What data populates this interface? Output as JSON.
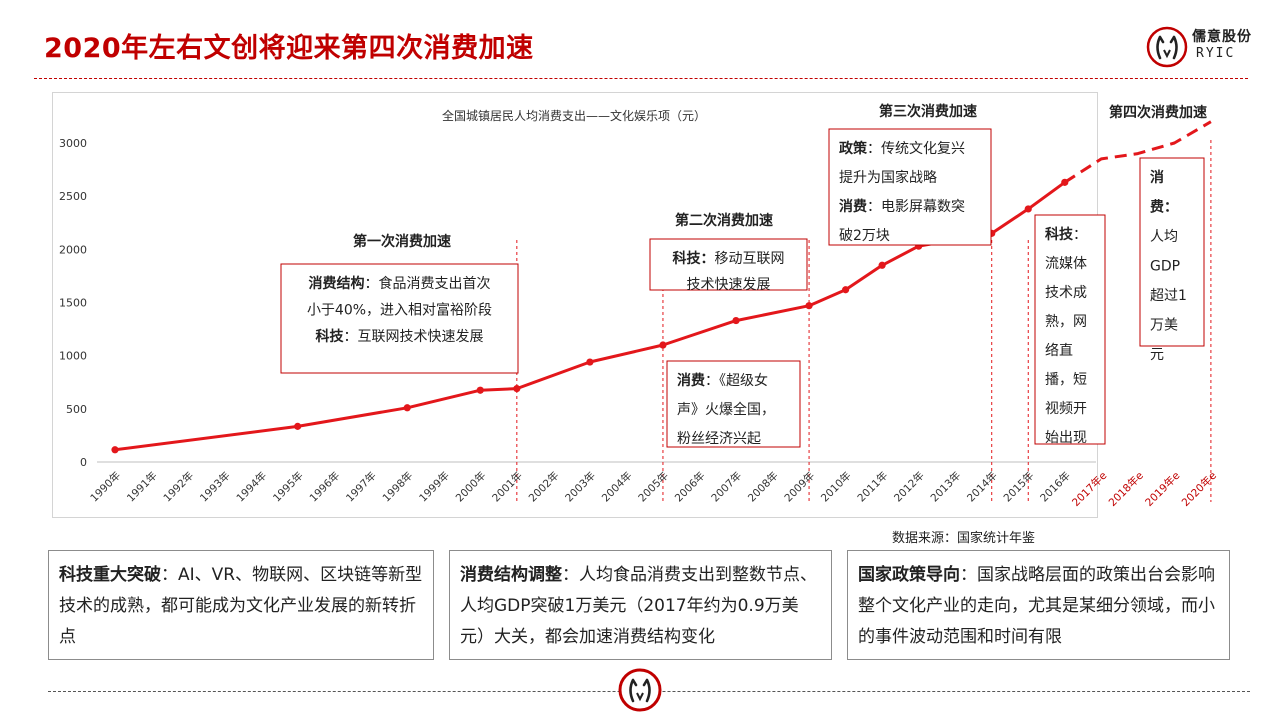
{
  "page": {
    "title": "2020年左右文创将迎来第四次消费加速",
    "source": "数据来源：国家统计年鉴"
  },
  "logo": {
    "icon": "ryic-logo-icon",
    "name_cn": "儒意股份",
    "name_en": "RYIC",
    "color": "#c00000"
  },
  "colors": {
    "accent": "#c00000",
    "line": "#e3171b"
  },
  "chart_data": {
    "type": "line",
    "title": "全国城镇居民人均消费支出——文化娱乐项（元）",
    "categories": [
      "1990年",
      "1991年",
      "1992年",
      "1993年",
      "1994年",
      "1995年",
      "1996年",
      "1997年",
      "1998年",
      "1999年",
      "2000年",
      "2001年",
      "2002年",
      "2003年",
      "2004年",
      "2005年",
      "2006年",
      "2007年",
      "2008年",
      "2009年",
      "2010年",
      "2011年",
      "2012年",
      "2013年",
      "2014年",
      "2015年",
      "2016年",
      "2017年e",
      "2018年e",
      "2019年e",
      "2020年e"
    ],
    "forecast_categories": [
      "2017年e",
      "2018年e",
      "2019年e",
      "2020年e"
    ],
    "y_ticks": [
      0,
      500,
      1000,
      1500,
      2000,
      2500,
      3000
    ],
    "ylim": [
      0,
      3000
    ],
    "grid": false,
    "series": [
      {
        "points": [
          {
            "x": "1990年",
            "y": 115
          },
          {
            "x": "1995年",
            "y": 335
          },
          {
            "x": "1998年",
            "y": 510
          },
          {
            "x": "2000年",
            "y": 675
          },
          {
            "x": "2001年",
            "y": 690
          },
          {
            "x": "2003年",
            "y": 940
          },
          {
            "x": "2005年",
            "y": 1100
          },
          {
            "x": "2007年",
            "y": 1330
          },
          {
            "x": "2009年",
            "y": 1470
          },
          {
            "x": "2010年",
            "y": 1620
          },
          {
            "x": "2011年",
            "y": 1850
          },
          {
            "x": "2012年",
            "y": 2030
          },
          {
            "x": "2014年",
            "y": 2150
          },
          {
            "x": "2015年",
            "y": 2380
          },
          {
            "x": "2016年",
            "y": 2630
          }
        ]
      },
      {
        "forecast": true,
        "points": [
          {
            "x": "2016年",
            "y": 2630
          },
          {
            "x": "2017年e",
            "y": 2850
          },
          {
            "x": "2018年e",
            "y": 2900
          },
          {
            "x": "2019年e",
            "y": 3000
          },
          {
            "x": "2020年e",
            "y": 3200
          }
        ]
      }
    ],
    "stage_dividers": [
      "2001年",
      "2005年",
      "2009年",
      "2014年",
      "2015年",
      "2020年e"
    ],
    "annotations": [
      {
        "heading": "第一次消费加速",
        "lines": [
          {
            "bold": "消费结构",
            "text": "：食品消费支出首次"
          },
          {
            "bold": "",
            "text": "小于40%，进入相对富裕阶段"
          },
          {
            "bold": "科技",
            "text": "：互联网技术快速发展"
          }
        ]
      },
      {
        "heading": "第二次消费加速",
        "lines": [
          {
            "bold": "科技：",
            "text": "移动互联网"
          },
          {
            "bold": "",
            "text": "技术快速发展"
          }
        ]
      },
      {
        "heading": "",
        "lines": [
          {
            "bold": "消费",
            "text": "：《超级女"
          },
          {
            "bold": "",
            "text": "声》火爆全国，"
          },
          {
            "bold": "",
            "text": "粉丝经济兴起"
          }
        ]
      },
      {
        "heading": "第三次消费加速",
        "lines": [
          {
            "bold": "政策",
            "text": "：传统文化复兴"
          },
          {
            "bold": "",
            "text": "提升为国家战略"
          },
          {
            "bold": "消费",
            "text": "：电影屏幕数突"
          },
          {
            "bold": "",
            "text": "破2万块"
          }
        ]
      },
      {
        "heading": "",
        "lines": [
          {
            "bold": "科技",
            "text": "："
          },
          {
            "bold": "",
            "text": "流媒体"
          },
          {
            "bold": "",
            "text": "技术成"
          },
          {
            "bold": "",
            "text": "熟，网"
          },
          {
            "bold": "",
            "text": "络直"
          },
          {
            "bold": "",
            "text": "播，短"
          },
          {
            "bold": "",
            "text": "视频开"
          },
          {
            "bold": "",
            "text": "始出现"
          }
        ]
      },
      {
        "heading": "第四次消费加速",
        "lines": [
          {
            "bold": "消",
            "text": ""
          },
          {
            "bold": "费：",
            "text": ""
          },
          {
            "bold": "",
            "text": "人均"
          },
          {
            "bold": "",
            "text": "GDP"
          },
          {
            "bold": "",
            "text": "超过1"
          },
          {
            "bold": "",
            "text": "万美"
          },
          {
            "bold": "",
            "text": "元"
          }
        ]
      }
    ]
  },
  "notes": [
    {
      "bold": "科技重大突破",
      "text": "：AI、VR、物联网、区块链等新型技术的成熟，都可能成为文化产业发展的新转折点"
    },
    {
      "bold": "消费结构调整",
      "text": "：人均食品消费支出到整数节点、人均GDP突破1万美元（2017年约为0.9万美元）大关，都会加速消费结构变化"
    },
    {
      "bold": "国家政策导向",
      "text": "：国家战略层面的政策出台会影响整个文化产业的走向，尤其是某细分领域，而小的事件波动范围和时间有限"
    }
  ]
}
